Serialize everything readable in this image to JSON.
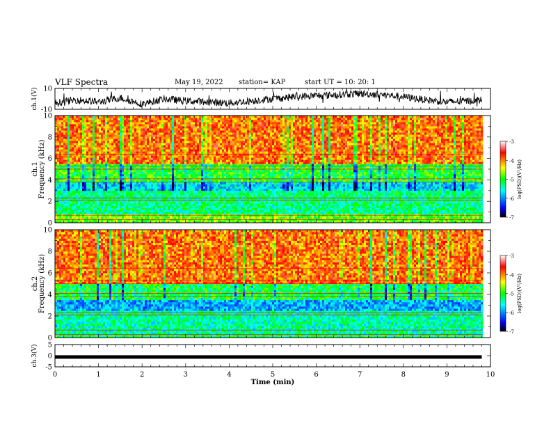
{
  "header": {
    "title": "VLF Spectra",
    "date": "May 19, 2022",
    "station": "station= KAP",
    "start_ut": "start  UT  =    10: 20: 1"
  },
  "colors": {
    "signal_line": "#000000",
    "colormap": [
      "#000000",
      "#0000ff",
      "#00ffff",
      "#00ff00",
      "#ffff00",
      "#ff0000",
      "#ffffff"
    ]
  },
  "chart_data": [
    {
      "type": "line",
      "panel": "waveform-ch1",
      "ylabel": "ch.1(V)",
      "ylim": [
        -10,
        10
      ],
      "yticks": [
        "10",
        "-10"
      ],
      "xlim": [
        0,
        10
      ],
      "x": [
        0.0,
        0.5,
        1.0,
        1.5,
        2.0,
        2.5,
        3.0,
        3.5,
        4.0,
        4.5,
        5.0,
        5.5,
        6.0,
        6.5,
        7.0,
        7.5,
        8.0,
        8.5,
        9.0,
        9.5,
        9.8
      ],
      "y": [
        -4.0,
        -1.0,
        -3.0,
        1.0,
        -5.0,
        0.0,
        -2.0,
        -3.0,
        -4.0,
        -2.0,
        0.0,
        2.0,
        3.0,
        4.0,
        5.0,
        4.0,
        2.0,
        -1.0,
        -3.0,
        -2.0,
        -1.0
      ]
    },
    {
      "type": "heatmap",
      "panel": "spectrogram-ch1",
      "ylabel": "ch.1",
      "ylabel2": "Frequency (kHz)",
      "ylim": [
        0,
        10
      ],
      "yticks": [
        "0",
        "2",
        "4",
        "6",
        "8",
        "10"
      ],
      "xlim": [
        0,
        10
      ],
      "frequency_bands_khz": [
        {
          "from": 0,
          "to": 0.8,
          "level": -4.8
        },
        {
          "from": 0.8,
          "to": 3.0,
          "level": -5.3
        },
        {
          "from": 3.0,
          "to": 3.8,
          "level": -5.7
        },
        {
          "from": 3.8,
          "to": 5.5,
          "level": -5.0
        },
        {
          "from": 5.5,
          "to": 10,
          "level": -3.9
        }
      ],
      "colorbar": {
        "label": "log(PSD)(V²/Hz)",
        "range": [
          -7,
          -3
        ],
        "ticks": [
          "-3",
          "-4",
          "-5",
          "-6",
          "-7"
        ]
      }
    },
    {
      "type": "heatmap",
      "panel": "spectrogram-ch2",
      "ylabel": "ch.2",
      "ylabel2": "Frequency (kHz)",
      "ylim": [
        0,
        10
      ],
      "yticks": [
        "0",
        "2",
        "4",
        "6",
        "8",
        "10"
      ],
      "xlim": [
        0,
        10
      ],
      "frequency_bands_khz": [
        {
          "from": 0,
          "to": 0.3,
          "level": -5.2
        },
        {
          "from": 0.3,
          "to": 2.5,
          "level": -5.4
        },
        {
          "from": 2.5,
          "to": 3.5,
          "level": -5.9
        },
        {
          "from": 3.5,
          "to": 5.0,
          "level": -5.1
        },
        {
          "from": 5.0,
          "to": 10,
          "level": -3.9
        }
      ],
      "colorbar": {
        "label": "log(PSD)(V²/Hz)",
        "range": [
          -7,
          -3
        ],
        "ticks": [
          "-3",
          "-4",
          "-5",
          "-6",
          "-7"
        ]
      }
    },
    {
      "type": "line",
      "panel": "waveform-ch3",
      "ylabel": "ch.3(V)",
      "ylim": [
        -5,
        5
      ],
      "yticks": [
        "5",
        "0",
        "-5"
      ],
      "xlim": [
        0,
        10
      ],
      "x": [
        0.0,
        9.8
      ],
      "y": [
        -0.6,
        -0.6
      ]
    }
  ],
  "xaxis": {
    "label": "Time (min)",
    "ticks": [
      "0",
      "1",
      "2",
      "3",
      "4",
      "5",
      "6",
      "7",
      "8",
      "9",
      "10"
    ]
  }
}
